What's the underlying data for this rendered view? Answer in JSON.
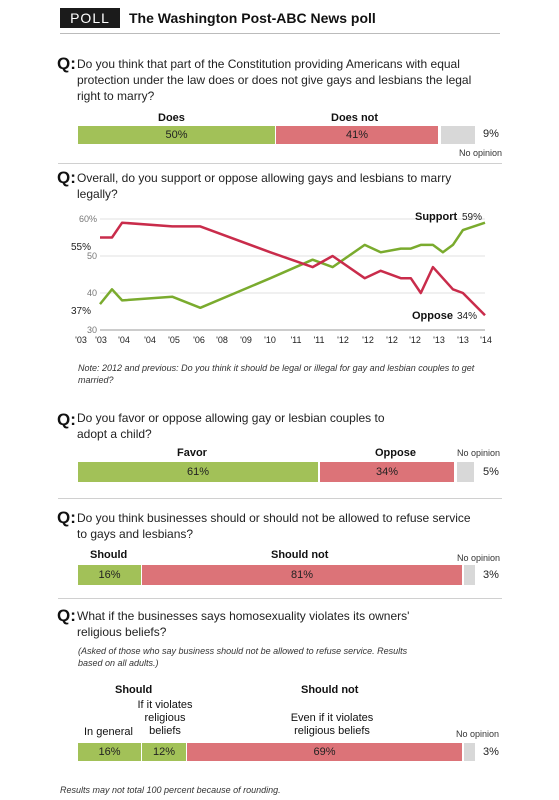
{
  "header": {
    "badge": "POLL",
    "title": "The Washington Post-ABC News poll"
  },
  "q_marker": "Q:",
  "q1": {
    "text": "Do you think that part of the Constitution providing Americans with equal protection under the law does or does not give gays and lesbians the legal right to marry?",
    "labels": [
      "Does",
      "Does not"
    ],
    "values": [
      "50%",
      "41%"
    ],
    "noop_value": "9%",
    "noop_label": "No opinion"
  },
  "q2": {
    "text": "Overall, do you support or oppose allowing gays and lesbians to marry legally?",
    "note": "Note: 2012 and previous: Do you think it should be legal or illegal for gay and lesbian couples to get married?",
    "start_support": "37%",
    "start_oppose": "55%",
    "end_support": "59%",
    "end_oppose": "34%"
  },
  "q3": {
    "text": "Do you favor or oppose allowing gay or lesbian couples to adopt a child?",
    "labels": [
      "Favor",
      "Oppose"
    ],
    "values": [
      "61%",
      "34%"
    ],
    "noop_value": "5%",
    "noop_label": "No opinion"
  },
  "q4": {
    "text": "Do you think businesses should or should not be allowed to refuse service to gays and lesbians?",
    "labels": [
      "Should",
      "Should not"
    ],
    "values": [
      "16%",
      "81%"
    ],
    "noop_value": "3%",
    "noop_label": "No opinion"
  },
  "q5": {
    "text": "What if the businesses says homosexuality violates its owners' religious beliefs?",
    "subnote": "(Asked of those who say business should not be allowed to refuse service. Results based on all adults.)",
    "group_labels": [
      "Should",
      "Should not"
    ],
    "sub_labels": [
      "In general",
      "If it violates religious beliefs",
      "Even if it violates religious beliefs"
    ],
    "values": [
      "16%",
      "12%",
      "69%"
    ],
    "noop_value": "3%",
    "noop_label": "No opinion"
  },
  "footer": "Results may not total 100 percent because of rounding.",
  "chart_data": [
    {
      "type": "bar",
      "stacked": true,
      "categories": [
        "Does",
        "Does not",
        "No opinion"
      ],
      "values": [
        50,
        41,
        9
      ]
    },
    {
      "type": "line",
      "ylim": [
        30,
        60
      ],
      "yticks": [
        "60%",
        "50",
        "40",
        "30"
      ],
      "x_ticks": [
        "'03",
        "'03",
        "'04",
        "'04",
        "'05",
        "'06",
        "'08",
        "'09",
        "'10",
        "'11",
        "'11",
        "'12",
        "'12",
        "'12",
        "'12",
        "'13",
        "'13",
        "'14"
      ],
      "series": [
        {
          "name": "Support",
          "color": "#7aab2e",
          "x": [
            0,
            0.6,
            1.1,
            3.6,
            5.0,
            8.5,
            10.6,
            11.6,
            13.2,
            14.0,
            15.0,
            15.5,
            16.0,
            16.6,
            17.1,
            17.6,
            18.1,
            19.2
          ],
          "y": [
            37,
            41,
            38,
            39,
            36,
            44,
            49,
            47,
            53,
            51,
            52,
            52,
            53,
            53,
            51,
            53,
            57,
            59
          ]
        },
        {
          "name": "Oppose",
          "color": "#c92c4b",
          "x": [
            0,
            0.6,
            1.1,
            3.6,
            5.0,
            8.5,
            10.6,
            11.6,
            13.2,
            14.0,
            15.0,
            15.5,
            16.0,
            16.6,
            17.1,
            17.6,
            18.1,
            19.2
          ],
          "y": [
            55,
            55,
            59,
            58,
            58,
            51,
            47,
            50,
            44,
            46,
            44,
            44,
            40,
            47,
            44,
            41,
            40,
            34
          ]
        }
      ]
    },
    {
      "type": "bar",
      "stacked": true,
      "categories": [
        "Favor",
        "Oppose",
        "No opinion"
      ],
      "values": [
        61,
        34,
        5
      ]
    },
    {
      "type": "bar",
      "stacked": true,
      "categories": [
        "Should",
        "Should not",
        "No opinion"
      ],
      "values": [
        16,
        81,
        3
      ]
    },
    {
      "type": "bar",
      "stacked": true,
      "categories": [
        "In general",
        "If it violates religious beliefs",
        "Even if it violates religious beliefs",
        "No opinion"
      ],
      "values": [
        16,
        12,
        69,
        3
      ]
    }
  ]
}
